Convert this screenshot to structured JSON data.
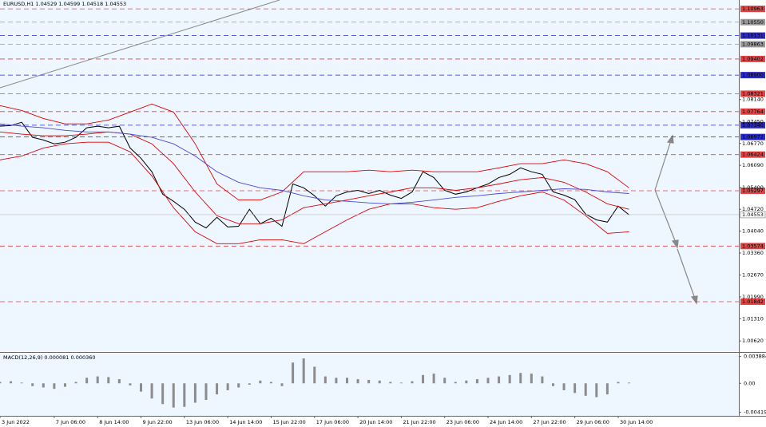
{
  "chart_data": [
    {
      "type": "line",
      "title": "EURUSD,H1 1.04529 1.04599 1.04518 1.04553",
      "xlim": [
        0,
        545
      ],
      "ylim": [
        1.003,
        1.1124
      ],
      "yticks": [
        {
          "value": 1.0062,
          "label": "1.00620"
        },
        {
          "value": 1.0131,
          "label": "1.01310"
        },
        {
          "value": 1.0199,
          "label": "1.01990"
        },
        {
          "value": 1.0267,
          "label": "1.02670"
        },
        {
          "value": 1.0336,
          "label": "1.03360"
        },
        {
          "value": 1.0404,
          "label": "1.04040"
        },
        {
          "value": 1.0472,
          "label": "1.04720"
        },
        {
          "value": 1.054,
          "label": "1.05400"
        },
        {
          "value": 1.0609,
          "label": "1.06090"
        },
        {
          "value": 1.0677,
          "label": "1.06770"
        },
        {
          "value": 1.0745,
          "label": "1.07450"
        },
        {
          "value": 1.0814,
          "label": "1.08140"
        }
      ],
      "levels": [
        {
          "value": 1.10963,
          "color": "#e04545"
        },
        {
          "value": 1.1055,
          "label": "1.10550",
          "color": "#9a9a9a"
        },
        {
          "value": 1.10131,
          "color": "#2a2ac8"
        },
        {
          "value": 1.09863,
          "color": "#9a9a9a"
        },
        {
          "value": 1.09402,
          "color": "#e04545"
        },
        {
          "value": 1.089,
          "label": "1.08900",
          "color": "#2a2ac8"
        },
        {
          "value": 1.08321,
          "color": "#e04545"
        },
        {
          "value": 1.07764,
          "color": "#e04545"
        },
        {
          "value": 1.0734,
          "label": "1.07340",
          "color": "#2a2ac8"
        },
        {
          "value": 1.06972,
          "color": "#2a2ac8"
        },
        {
          "value": 1.06424,
          "color": "#e04545"
        },
        {
          "value": 1.05297,
          "color": "#e04545"
        },
        {
          "value": 1.03574,
          "color": "#e04545"
        },
        {
          "value": 1.01842,
          "color": "#e04545"
        }
      ],
      "current_price": 1.04553,
      "series": [
        {
          "color": "#000000",
          "x": [
            0,
            8,
            16,
            24,
            32,
            40,
            48,
            56,
            64,
            72,
            80,
            88,
            96,
            104,
            112,
            120,
            128,
            136,
            144,
            152,
            160,
            168,
            176,
            184,
            192,
            200,
            208,
            216,
            224,
            232,
            240,
            248,
            256,
            264,
            272,
            280,
            288,
            296,
            304,
            312,
            320,
            328,
            336,
            344,
            352,
            360,
            368,
            376,
            384,
            392,
            400,
            408,
            416,
            424,
            432,
            440,
            448,
            456,
            464
          ],
          "values": [
            1.0731,
            1.0733,
            1.0743,
            1.0696,
            1.0688,
            1.0676,
            1.0681,
            1.0696,
            1.0726,
            1.0731,
            1.0726,
            1.0731,
            1.0663,
            1.0631,
            1.0589,
            1.0519,
            1.0497,
            1.0472,
            1.0432,
            1.0414,
            1.0447,
            1.0417,
            1.0419,
            1.0472,
            1.0427,
            1.0444,
            1.0419,
            1.0551,
            1.0539,
            1.0514,
            1.0482,
            1.0514,
            1.0526,
            1.0531,
            1.0521,
            1.0531,
            1.0516,
            1.0506,
            1.0526,
            1.0589,
            1.0571,
            1.0531,
            1.0519,
            1.0526,
            1.0539,
            1.0551,
            1.0571,
            1.0581,
            1.0601,
            1.0589,
            1.0581,
            1.0526,
            1.0516,
            1.0502,
            1.0457,
            1.0439,
            1.0432,
            1.0482,
            1.0455
          ]
        },
        {
          "color": "#e00000",
          "x": [
            0,
            16,
            32,
            48,
            64,
            80,
            96,
            112,
            128,
            144,
            160,
            176,
            192,
            208,
            224,
            240,
            256,
            272,
            288,
            304,
            320,
            336,
            352,
            368,
            384,
            400,
            416,
            432,
            448,
            464
          ],
          "values": [
            1.0795,
            1.078,
            1.0755,
            1.0738,
            1.0738,
            1.075,
            1.0775,
            1.08,
            1.0775,
            1.0676,
            1.0551,
            1.0501,
            1.0501,
            1.0526,
            1.0589,
            1.0589,
            1.0589,
            1.0594,
            1.0589,
            1.0594,
            1.0589,
            1.0589,
            1.0589,
            1.0601,
            1.0614,
            1.0614,
            1.0626,
            1.0614,
            1.0589,
            1.0539
          ]
        },
        {
          "color": "#e00000",
          "x": [
            0,
            16,
            32,
            48,
            64,
            80,
            96,
            112,
            128,
            144,
            160,
            176,
            192,
            208,
            224,
            240,
            256,
            272,
            288,
            304,
            320,
            336,
            352,
            368,
            384,
            400,
            416,
            432,
            448,
            464
          ],
          "values": [
            1.0626,
            1.0638,
            1.0663,
            1.0676,
            1.0681,
            1.0681,
            1.0651,
            1.0576,
            1.0477,
            1.0402,
            1.0365,
            1.0365,
            1.0377,
            1.0377,
            1.0365,
            1.0402,
            1.0439,
            1.0472,
            1.0489,
            1.0489,
            1.0477,
            1.0472,
            1.0477,
            1.0497,
            1.0514,
            1.0526,
            1.0501,
            1.0452,
            1.0397,
            1.0402
          ]
        },
        {
          "color": "#e00000",
          "x": [
            0,
            16,
            32,
            48,
            64,
            80,
            96,
            112,
            128,
            144,
            160,
            176,
            192,
            208,
            224,
            240,
            256,
            272,
            288,
            304,
            320,
            336,
            352,
            368,
            384,
            400,
            416,
            432,
            448,
            464
          ],
          "values": [
            1.0713,
            1.0706,
            1.0701,
            1.0701,
            1.0706,
            1.0713,
            1.0706,
            1.0676,
            1.0614,
            1.0526,
            1.0452,
            1.0427,
            1.0427,
            1.0439,
            1.0477,
            1.0489,
            1.0501,
            1.0514,
            1.0526,
            1.0539,
            1.0539,
            1.0531,
            1.0539,
            1.0551,
            1.0564,
            1.0571,
            1.0556,
            1.0526,
            1.0489,
            1.0472
          ]
        },
        {
          "color": "#4a4ad8",
          "x": [
            0,
            16,
            32,
            48,
            64,
            80,
            96,
            112,
            128,
            144,
            160,
            176,
            192,
            208,
            224,
            240,
            256,
            272,
            288,
            304,
            320,
            336,
            352,
            368,
            384,
            400,
            416,
            432,
            448,
            464
          ],
          "values": [
            1.0738,
            1.0731,
            1.0726,
            1.0718,
            1.0713,
            1.0713,
            1.0706,
            1.0696,
            1.0676,
            1.0638,
            1.0589,
            1.0556,
            1.0539,
            1.0531,
            1.0514,
            1.0501,
            1.0497,
            1.0492,
            1.0489,
            1.0494,
            1.0501,
            1.0509,
            1.0514,
            1.0521,
            1.0526,
            1.0531,
            1.0536,
            1.0534,
            1.0526,
            1.0521
          ]
        }
      ]
    },
    {
      "type": "bar",
      "title": "MACD(12,26,9) 0.000081 0.000360",
      "color": "#8c8c8c",
      "xlim": [
        0,
        545
      ],
      "xticks": [
        {
          "value": 0,
          "label": "3 Jun 2022"
        },
        {
          "value": 40,
          "label": "7 Jun 06:00"
        },
        {
          "value": 72,
          "label": "8 Jun 14:00"
        },
        {
          "value": 104,
          "label": "9 Jun 22:00"
        },
        {
          "value": 136,
          "label": "13 Jun 06:00"
        },
        {
          "value": 168,
          "label": "14 Jun 14:00"
        },
        {
          "value": 200,
          "label": "15 Jun 22:00"
        },
        {
          "value": 232,
          "label": "17 Jun 06:00"
        },
        {
          "value": 264,
          "label": "20 Jun 14:00"
        },
        {
          "value": 296,
          "label": "21 Jun 22:00"
        },
        {
          "value": 328,
          "label": "23 Jun 06:00"
        },
        {
          "value": 360,
          "label": "24 Jun 14:00"
        },
        {
          "value": 392,
          "label": "27 Jun 22:00"
        },
        {
          "value": 424,
          "label": "29 Jun 06:00"
        },
        {
          "value": 456,
          "label": "30 Jun 14:00"
        }
      ],
      "ylim": [
        -0.0047,
        0.0043
      ],
      "yticks": [
        0.003884,
        {
          "value": 0,
          "label": "0.00"
        },
        -0.004191
      ],
      "x": [
        0,
        8,
        16,
        24,
        32,
        40,
        48,
        56,
        64,
        72,
        80,
        88,
        96,
        104,
        112,
        120,
        128,
        136,
        144,
        152,
        160,
        168,
        176,
        184,
        192,
        200,
        208,
        216,
        224,
        232,
        240,
        248,
        256,
        264,
        272,
        280,
        288,
        296,
        304,
        312,
        320,
        328,
        336,
        344,
        352,
        360,
        368,
        376,
        384,
        392,
        400,
        408,
        416,
        424,
        432,
        440,
        448,
        456,
        464
      ],
      "values": [
        0.0002,
        0.0003,
        0.0001,
        -0.0004,
        -0.0006,
        -0.0008,
        -0.0005,
        0.0002,
        0.0008,
        0.001,
        0.0009,
        0.0006,
        -0.0003,
        -0.0012,
        -0.0022,
        -0.003,
        -0.0035,
        -0.0034,
        -0.0028,
        -0.0024,
        -0.0016,
        -0.001,
        -0.0006,
        -0.0002,
        0.0004,
        0.0002,
        -0.0004,
        0.003,
        0.0036,
        0.0024,
        0.001,
        0.0008,
        0.0008,
        0.0006,
        0.0005,
        0.0004,
        0.0002,
        0.0001,
        0.0003,
        0.0012,
        0.0014,
        0.0008,
        0.0002,
        0.0004,
        0.0006,
        0.0008,
        0.001,
        0.0012,
        0.0015,
        0.0014,
        0.001,
        -0.0004,
        -0.001,
        -0.0014,
        -0.0018,
        -0.002,
        -0.0016,
        0.0002,
        0.0001
      ]
    }
  ]
}
